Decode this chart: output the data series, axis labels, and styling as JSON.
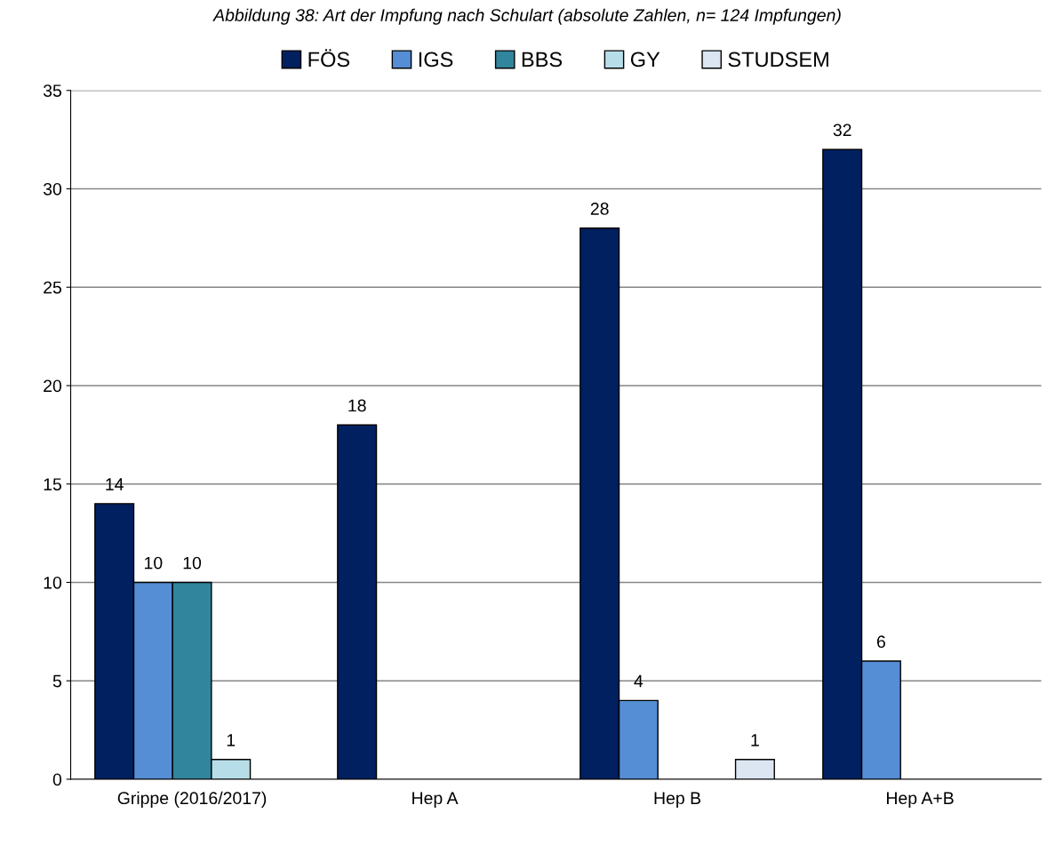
{
  "chart_data": {
    "type": "bar",
    "title": "Abbildung 38: Art der Impfung nach Schulart (absolute Zahlen, n= 124 Impfungen)",
    "categories": [
      "Grippe (2016/2017)",
      "Hep A",
      "Hep B",
      "Hep A+B"
    ],
    "series": [
      {
        "name": "FÖS",
        "color": "#002060",
        "values": [
          14,
          18,
          28,
          32
        ]
      },
      {
        "name": "IGS",
        "color": "#558ed5",
        "values": [
          10,
          null,
          4,
          6
        ]
      },
      {
        "name": "BBS",
        "color": "#31859c",
        "values": [
          10,
          null,
          null,
          null
        ]
      },
      {
        "name": "GY",
        "color": "#b7dee8",
        "values": [
          1,
          null,
          null,
          null
        ]
      },
      {
        "name": "STUDSEM",
        "color": "#dce6f2",
        "values": [
          null,
          null,
          1,
          null
        ]
      }
    ],
    "ylim": [
      0,
      35
    ],
    "yticks": [
      0,
      5,
      10,
      15,
      20,
      25,
      30,
      35
    ],
    "grid": "y",
    "legend": "top",
    "data_labels": true
  }
}
